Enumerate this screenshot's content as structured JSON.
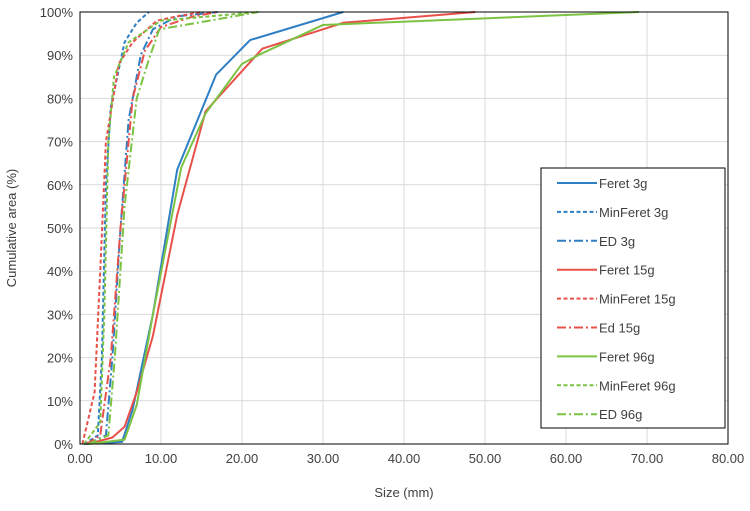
{
  "chart_data": {
    "type": "line",
    "title": "",
    "xlabel": "Size (mm)",
    "ylabel": "Cumulative area (%)",
    "xlim": [
      0,
      80
    ],
    "ylim": [
      0,
      100
    ],
    "grid": true,
    "legend_placement": "bottom-right",
    "x_ticks": [
      "0.00",
      "10.00",
      "20.00",
      "30.00",
      "40.00",
      "50.00",
      "60.00",
      "70.00",
      "80.00"
    ],
    "y_ticks": [
      "0%",
      "10%",
      "20%",
      "30%",
      "40%",
      "50%",
      "60%",
      "70%",
      "80%",
      "90%",
      "100%"
    ],
    "series": [
      {
        "name": "Feret 3g",
        "color": "#2e7fc4",
        "style": "solid",
        "points": [
          [
            0.5,
            0
          ],
          [
            5.2,
            0.5
          ],
          [
            6.5,
            8
          ],
          [
            9,
            30
          ],
          [
            12,
            63.5
          ],
          [
            16.8,
            85.5
          ],
          [
            21,
            93.5
          ],
          [
            32.5,
            100
          ]
        ]
      },
      {
        "name": "MinFeret 3g",
        "color": "#2e7fc4",
        "style": "dash",
        "points": [
          [
            0.5,
            0
          ],
          [
            2.2,
            2
          ],
          [
            2.7,
            20
          ],
          [
            3.2,
            60
          ],
          [
            3.8,
            78
          ],
          [
            5.5,
            93
          ],
          [
            7,
            97.5
          ],
          [
            8.5,
            100
          ]
        ]
      },
      {
        "name": "ED 3g",
        "color": "#2e7fc4",
        "style": "dashdot",
        "points": [
          [
            1,
            0
          ],
          [
            3.2,
            2
          ],
          [
            4,
            20
          ],
          [
            5,
            50
          ],
          [
            6,
            75
          ],
          [
            7.5,
            90
          ],
          [
            9,
            96
          ],
          [
            12,
            99
          ],
          [
            17,
            100
          ]
        ]
      },
      {
        "name": "Feret 15g",
        "color": "#e8504a",
        "style": "solid",
        "points": [
          [
            1,
            0
          ],
          [
            4,
            1.5
          ],
          [
            5.5,
            4
          ],
          [
            7,
            12
          ],
          [
            9,
            25
          ],
          [
            12,
            53
          ],
          [
            15.5,
            77
          ],
          [
            22.5,
            91.5
          ],
          [
            32.5,
            97.5
          ],
          [
            48.8,
            100
          ]
        ]
      },
      {
        "name": "MinFeret 15g",
        "color": "#e8504a",
        "style": "dash",
        "points": [
          [
            0.3,
            0
          ],
          [
            1.8,
            12
          ],
          [
            2.5,
            40
          ],
          [
            3.2,
            70
          ],
          [
            4.8,
            88
          ],
          [
            6.5,
            93
          ],
          [
            9.5,
            98
          ],
          [
            12,
            99
          ],
          [
            15,
            100
          ]
        ]
      },
      {
        "name": "Ed 15g",
        "color": "#e8504a",
        "style": "dashdot",
        "points": [
          [
            0.8,
            0
          ],
          [
            2.5,
            2
          ],
          [
            3.8,
            20
          ],
          [
            5,
            50
          ],
          [
            6.5,
            80
          ],
          [
            8,
            91
          ],
          [
            10,
            96.5
          ],
          [
            14,
            99
          ],
          [
            17,
            100
          ]
        ]
      },
      {
        "name": "Feret 96g",
        "color": "#7cc243",
        "style": "solid",
        "points": [
          [
            1,
            0
          ],
          [
            5.5,
            1
          ],
          [
            7,
            9
          ],
          [
            9,
            30
          ],
          [
            12.5,
            64
          ],
          [
            15.5,
            76.5
          ],
          [
            20,
            88
          ],
          [
            22,
            90
          ],
          [
            30,
            97
          ],
          [
            69,
            100
          ]
        ]
      },
      {
        "name": "MinFeret 96g",
        "color": "#7cc243",
        "style": "dash",
        "points": [
          [
            0.5,
            0
          ],
          [
            2.5,
            5
          ],
          [
            3,
            30
          ],
          [
            3.5,
            70
          ],
          [
            4.2,
            85
          ],
          [
            6,
            93
          ],
          [
            10,
            98
          ],
          [
            22,
            100
          ]
        ]
      },
      {
        "name": "ED 96g",
        "color": "#7cc243",
        "style": "dashdot",
        "points": [
          [
            1,
            0
          ],
          [
            3.5,
            2
          ],
          [
            4.3,
            20
          ],
          [
            5.5,
            55
          ],
          [
            7,
            80
          ],
          [
            8.5,
            89
          ],
          [
            9.8,
            96
          ],
          [
            16,
            98
          ],
          [
            22,
            100
          ]
        ]
      }
    ]
  }
}
